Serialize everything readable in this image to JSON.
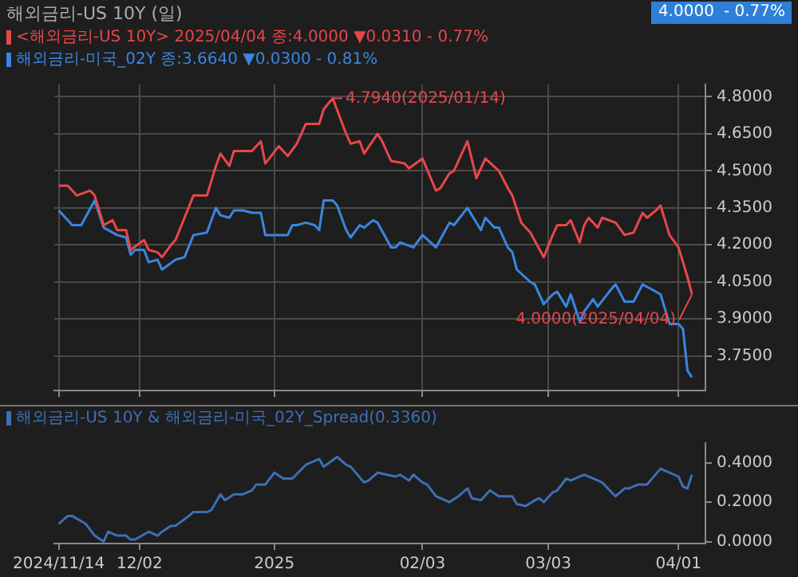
{
  "chart_data": [
    {
      "type": "line",
      "title": "해외금리-US 10Y (일)",
      "series": [
        {
          "name": "<해외금리-US 10Y> 2025/04/04 종:4.0000 ▼0.0310 - 0.77%",
          "color": "#e8474a",
          "x": [
            "2024-11-14",
            "2024-11-16",
            "2024-11-18",
            "2024-11-21",
            "2024-11-22",
            "2024-11-24",
            "2024-11-26",
            "2024-11-27",
            "2024-11-29",
            "2024-11-30",
            "2024-12-03",
            "2024-12-04",
            "2024-12-06",
            "2024-12-07",
            "2024-12-09",
            "2024-12-10",
            "2024-12-14",
            "2024-12-17",
            "2024-12-19",
            "2024-12-20",
            "2024-12-22",
            "2024-12-23",
            "2024-12-27",
            "2024-12-29",
            "2024-12-30",
            "2025-01-02",
            "2025-01-04",
            "2025-01-06",
            "2025-01-08",
            "2025-01-11",
            "2025-01-12",
            "2025-01-14",
            "2025-01-17",
            "2025-01-18",
            "2025-01-20",
            "2025-01-21",
            "2025-01-24",
            "2025-01-25",
            "2025-01-27",
            "2025-01-30",
            "2025-01-31",
            "2025-02-03",
            "2025-02-06",
            "2025-02-07",
            "2025-02-09",
            "2025-02-10",
            "2025-02-13",
            "2025-02-15",
            "2025-02-17",
            "2025-02-20",
            "2025-02-22",
            "2025-02-23",
            "2025-02-25",
            "2025-02-27",
            "2025-03-02",
            "2025-03-04",
            "2025-03-05",
            "2025-03-07",
            "2025-03-08",
            "2025-03-10",
            "2025-03-11",
            "2025-03-12",
            "2025-03-14",
            "2025-03-15",
            "2025-03-18",
            "2025-03-20",
            "2025-03-22",
            "2025-03-24",
            "2025-03-25",
            "2025-03-27",
            "2025-03-28",
            "2025-03-30",
            "2025-04-01",
            "2025-04-02",
            "2025-04-03",
            "2025-04-04"
          ],
          "values": [
            4.44,
            4.44,
            4.4,
            4.42,
            4.4,
            4.28,
            4.3,
            4.26,
            4.26,
            4.18,
            4.22,
            4.18,
            4.17,
            4.15,
            4.2,
            4.22,
            4.4,
            4.4,
            4.52,
            4.57,
            4.52,
            4.58,
            4.58,
            4.62,
            4.53,
            4.6,
            4.56,
            4.61,
            4.69,
            4.69,
            4.75,
            4.794,
            4.65,
            4.61,
            4.62,
            4.57,
            4.65,
            4.62,
            4.54,
            4.53,
            4.51,
            4.55,
            4.42,
            4.43,
            4.49,
            4.5,
            4.62,
            4.47,
            4.55,
            4.5,
            4.43,
            4.4,
            4.29,
            4.25,
            4.15,
            4.24,
            4.28,
            4.28,
            4.3,
            4.21,
            4.28,
            4.31,
            4.27,
            4.31,
            4.29,
            4.24,
            4.25,
            4.33,
            4.31,
            4.34,
            4.36,
            4.24,
            4.19,
            4.13,
            4.07,
            4.0
          ]
        },
        {
          "name": "해외금리-미국_02Y 종:3.6640 ▼0.0300 - 0.81%",
          "color": "#3a86e0",
          "x": [
            "2024-11-14",
            "2024-11-16",
            "2024-11-17",
            "2024-11-19",
            "2024-11-22",
            "2024-11-24",
            "2024-11-27",
            "2024-11-29",
            "2024-11-30",
            "2024-12-01",
            "2024-12-03",
            "2024-12-04",
            "2024-12-06",
            "2024-12-07",
            "2024-12-10",
            "2024-12-12",
            "2024-12-14",
            "2024-12-17",
            "2024-12-19",
            "2024-12-20",
            "2024-12-22",
            "2024-12-23",
            "2024-12-25",
            "2024-12-27",
            "2024-12-29",
            "2024-12-30",
            "2025-01-04",
            "2025-01-05",
            "2025-01-06",
            "2025-01-08",
            "2025-01-10",
            "2025-01-11",
            "2025-01-12",
            "2025-01-14",
            "2025-01-15",
            "2025-01-17",
            "2025-01-18",
            "2025-01-20",
            "2025-01-21",
            "2025-01-23",
            "2025-01-24",
            "2025-01-27",
            "2025-01-28",
            "2025-01-29",
            "2025-02-01",
            "2025-02-03",
            "2025-02-06",
            "2025-02-09",
            "2025-02-10",
            "2025-02-13",
            "2025-02-16",
            "2025-02-17",
            "2025-02-19",
            "2025-02-20",
            "2025-02-22",
            "2025-02-23",
            "2025-02-24",
            "2025-02-27",
            "2025-02-28",
            "2025-03-02",
            "2025-03-04",
            "2025-03-05",
            "2025-03-07",
            "2025-03-08",
            "2025-03-10",
            "2025-03-11",
            "2025-03-13",
            "2025-03-14",
            "2025-03-17",
            "2025-03-18",
            "2025-03-20",
            "2025-03-22",
            "2025-03-24",
            "2025-03-26",
            "2025-03-28",
            "2025-03-30",
            "2025-04-01",
            "2025-04-02",
            "2025-04-03",
            "2025-04-04"
          ],
          "values": [
            4.34,
            4.3,
            4.28,
            4.28,
            4.38,
            4.27,
            4.24,
            4.23,
            4.16,
            4.18,
            4.18,
            4.13,
            4.14,
            4.1,
            4.14,
            4.15,
            4.24,
            4.25,
            4.35,
            4.32,
            4.31,
            4.34,
            4.34,
            4.33,
            4.33,
            4.24,
            4.24,
            4.28,
            4.28,
            4.29,
            4.28,
            4.26,
            4.38,
            4.38,
            4.36,
            4.26,
            4.23,
            4.28,
            4.27,
            4.3,
            4.29,
            4.19,
            4.19,
            4.21,
            4.19,
            4.24,
            4.19,
            4.29,
            4.28,
            4.35,
            4.26,
            4.31,
            4.27,
            4.27,
            4.19,
            4.17,
            4.1,
            4.05,
            4.04,
            3.96,
            4.0,
            4.01,
            3.95,
            4.0,
            3.89,
            3.93,
            3.98,
            3.95,
            4.02,
            4.04,
            3.97,
            3.97,
            4.04,
            4.02,
            4.0,
            3.88,
            3.88,
            3.86,
            3.69,
            3.664
          ]
        }
      ],
      "xlim": [
        "2024-11-13",
        "2025-04-07"
      ],
      "xticks": [
        {
          "value": "2024-11-14",
          "label": null
        },
        {
          "value": "2024-12-02",
          "label": null
        },
        {
          "value": "2025-01-01",
          "label": null
        },
        {
          "value": "2025-02-03",
          "label": null
        },
        {
          "value": "2025-03-03",
          "label": null
        },
        {
          "value": "2025-04-01",
          "label": null
        }
      ],
      "ylim": [
        3.61,
        4.85
      ],
      "yticks": [
        {
          "value": 3.75,
          "label": "3.7500"
        },
        {
          "value": 3.9,
          "label": "3.9000"
        },
        {
          "value": 4.05,
          "label": "4.0500"
        },
        {
          "value": 4.2,
          "label": "4.2000"
        },
        {
          "value": 4.35,
          "label": "4.3500"
        },
        {
          "value": 4.5,
          "label": "4.5000"
        },
        {
          "value": 4.65,
          "label": "4.6500"
        },
        {
          "value": 4.8,
          "label": "4.8000"
        }
      ],
      "grid": true,
      "legend": "top left",
      "tick_labels": "y",
      "annotations": [
        {
          "text": "4.7940(2025/01/14)",
          "x": "2025-01-14",
          "y": 4.794
        },
        {
          "text": "4.0000(2025/04/04)",
          "x": "2025-04-04",
          "y": 4.0
        },
        "4.0000",
        "- 0.77%"
      ]
    },
    {
      "type": "line",
      "series": [
        {
          "name": "해외금리-US 10Y & 해외금리-미국_02Y_Spread(0.3360)",
          "color": "#3d6fb5",
          "x": [
            "2024-11-14",
            "2024-11-16",
            "2024-11-17",
            "2024-11-20",
            "2024-11-22",
            "2024-11-24",
            "2024-11-25",
            "2024-11-27",
            "2024-11-29",
            "2024-11-30",
            "2024-12-01",
            "2024-12-04",
            "2024-12-06",
            "2024-12-07",
            "2024-12-09",
            "2024-12-10",
            "2024-12-13",
            "2024-12-14",
            "2024-12-17",
            "2024-12-18",
            "2024-12-20",
            "2024-12-21",
            "2024-12-23",
            "2024-12-25",
            "2024-12-27",
            "2024-12-28",
            "2024-12-30",
            "2025-01-01",
            "2025-01-03",
            "2025-01-05",
            "2025-01-08",
            "2025-01-11",
            "2025-01-12",
            "2025-01-15",
            "2025-01-17",
            "2025-01-18",
            "2025-01-21",
            "2025-01-22",
            "2025-01-24",
            "2025-01-26",
            "2025-01-28",
            "2025-01-29",
            "2025-01-31",
            "2025-02-01",
            "2025-02-03",
            "2025-02-04",
            "2025-02-06",
            "2025-02-07",
            "2025-02-09",
            "2025-02-11",
            "2025-02-13",
            "2025-02-14",
            "2025-02-16",
            "2025-02-18",
            "2025-02-20",
            "2025-02-23",
            "2025-02-24",
            "2025-02-26",
            "2025-02-28",
            "2025-03-01",
            "2025-03-02",
            "2025-03-04",
            "2025-03-05",
            "2025-03-07",
            "2025-03-08",
            "2025-03-11",
            "2025-03-13",
            "2025-03-15",
            "2025-03-18",
            "2025-03-20",
            "2025-03-21",
            "2025-03-23",
            "2025-03-25",
            "2025-03-28",
            "2025-04-01",
            "2025-04-02",
            "2025-04-03",
            "2025-04-04"
          ],
          "values": [
            0.09,
            0.13,
            0.13,
            0.09,
            0.03,
            0.0,
            0.05,
            0.03,
            0.03,
            0.01,
            0.01,
            0.05,
            0.03,
            0.05,
            0.08,
            0.08,
            0.13,
            0.15,
            0.15,
            0.16,
            0.24,
            0.21,
            0.24,
            0.24,
            0.26,
            0.29,
            0.29,
            0.35,
            0.32,
            0.32,
            0.39,
            0.42,
            0.38,
            0.43,
            0.39,
            0.38,
            0.3,
            0.31,
            0.35,
            0.34,
            0.33,
            0.34,
            0.31,
            0.34,
            0.3,
            0.29,
            0.23,
            0.22,
            0.2,
            0.23,
            0.27,
            0.22,
            0.21,
            0.26,
            0.23,
            0.23,
            0.19,
            0.18,
            0.21,
            0.22,
            0.2,
            0.25,
            0.26,
            0.32,
            0.31,
            0.34,
            0.32,
            0.3,
            0.23,
            0.27,
            0.27,
            0.29,
            0.29,
            0.37,
            0.33,
            0.28,
            0.27,
            0.34
          ]
        }
      ],
      "xlim": [
        "2024-11-13",
        "2025-04-07"
      ],
      "xticks": [
        {
          "value": "2024-11-14",
          "label": "2024/11/14"
        },
        {
          "value": "2024-12-02",
          "label": "12/02"
        },
        {
          "value": "2025-01-01",
          "label": "2025"
        },
        {
          "value": "2025-02-03",
          "label": "02/03"
        },
        {
          "value": "2025-03-03",
          "label": "03/03"
        },
        {
          "value": "2025-04-01",
          "label": "04/01"
        }
      ],
      "ylim": [
        -0.01,
        0.5
      ],
      "yticks": [
        {
          "value": 0,
          "label": "0.0000"
        },
        {
          "value": 0.2,
          "label": "0.2000"
        },
        {
          "value": 0.4,
          "label": "0.4000"
        }
      ],
      "legend": "top left"
    }
  ]
}
